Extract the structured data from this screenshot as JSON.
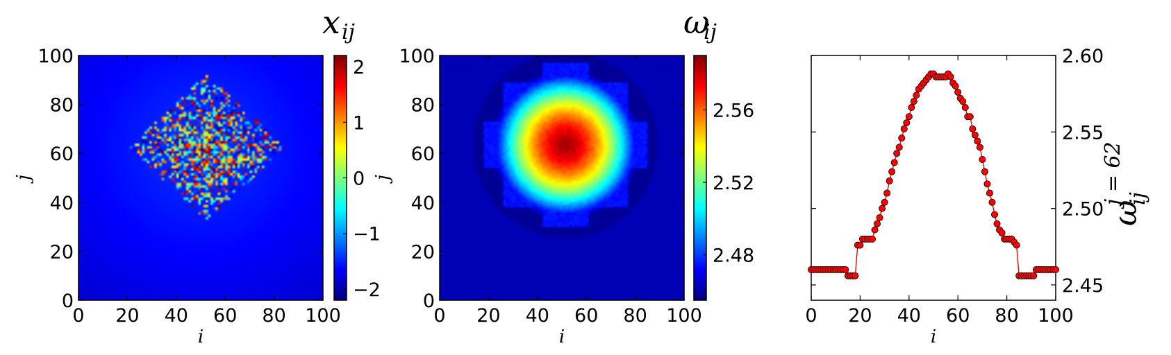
{
  "chart_data": [
    {
      "type": "heatmap",
      "title": "x",
      "title_sub": "ij",
      "xlabel": "i",
      "ylabel": "j",
      "xlim": [
        0,
        100
      ],
      "ylim": [
        0,
        100
      ],
      "xticks": [
        0,
        20,
        40,
        60,
        80,
        100
      ],
      "yticks": [
        0,
        20,
        40,
        60,
        80,
        100
      ],
      "colorbar": {
        "ticks": [
          2,
          1,
          0,
          -1,
          -2
        ],
        "tick_labels": [
          "2",
          "1",
          "0",
          "−1",
          "−2"
        ],
        "range": [
          -2.2,
          2.2
        ]
      },
      "colormap": "jet",
      "description_values": {
        "background_level_center": -1.4,
        "background_level_edge": -1.85,
        "noisy_region_center": [
          52,
          62
        ],
        "noisy_region_half_width": [
          32,
          30
        ],
        "noisy_value_range": [
          -2.2,
          2.2
        ]
      }
    },
    {
      "type": "heatmap",
      "title": "ω",
      "title_sub": "ij",
      "xlabel": "i",
      "ylabel": "j",
      "xlim": [
        0,
        100
      ],
      "ylim": [
        0,
        100
      ],
      "xticks": [
        0,
        20,
        40,
        60,
        80,
        100
      ],
      "yticks": [
        0,
        20,
        40,
        60,
        80,
        100
      ],
      "colorbar": {
        "ticks": [
          2.56,
          2.52,
          2.48
        ],
        "tick_labels": [
          "2.56",
          "2.52",
          "2.48"
        ],
        "range": [
          2.455,
          2.59
        ]
      },
      "colormap": "jet",
      "description_values": {
        "peak_center": [
          51,
          63
        ],
        "peak_value": 2.585,
        "outer_level": 2.462,
        "disk_level": 2.458,
        "disk_radius": 38,
        "plateau_level": 2.474
      }
    },
    {
      "type": "line",
      "title": "",
      "xlabel": "i",
      "ylabel": "ω",
      "ylabel_sub": "ij",
      "ylabel_sup": "j = 62",
      "xlim": [
        0,
        100
      ],
      "ylim": [
        2.44,
        2.6
      ],
      "xticks": [
        0,
        20,
        40,
        60,
        80,
        100
      ],
      "yticks": [
        2.45,
        2.5,
        2.55,
        2.6
      ],
      "ytick_labels": [
        "2.45",
        "2.50",
        "2.55",
        "2.60"
      ],
      "color": "#ff0000",
      "marker": "circle",
      "series": [
        {
          "x": [
            0,
            1,
            2,
            3,
            4,
            5,
            6,
            7,
            8,
            9,
            10,
            11,
            12,
            13,
            14,
            15,
            16,
            17,
            18,
            19,
            20,
            21,
            22,
            23,
            24,
            25,
            26,
            27,
            28,
            29,
            30,
            31,
            32,
            33,
            34,
            35,
            36,
            37,
            38,
            39,
            40,
            41,
            42,
            43,
            44,
            45,
            46,
            47,
            48,
            49,
            50,
            51,
            52,
            53,
            54,
            55,
            56,
            57,
            58,
            59,
            60,
            61,
            62,
            63,
            64,
            65,
            66,
            67,
            68,
            69,
            70,
            71,
            72,
            73,
            74,
            75,
            76,
            77,
            78,
            79,
            80,
            81,
            82,
            83,
            84,
            85,
            86,
            87,
            88,
            89,
            90,
            91,
            92,
            93,
            94,
            95,
            96,
            97,
            98,
            99,
            100
          ],
          "y": [
            2.46,
            2.46,
            2.46,
            2.46,
            2.46,
            2.46,
            2.46,
            2.46,
            2.46,
            2.46,
            2.46,
            2.46,
            2.46,
            2.46,
            2.46,
            2.456,
            2.456,
            2.456,
            2.456,
            2.476,
            2.476,
            2.48,
            2.48,
            2.48,
            2.48,
            2.48,
            2.486,
            2.49,
            2.494,
            2.5,
            2.504,
            2.51,
            2.518,
            2.524,
            2.53,
            2.536,
            2.54,
            2.546,
            2.552,
            2.556,
            2.56,
            2.566,
            2.57,
            2.574,
            2.578,
            2.58,
            2.582,
            2.584,
            2.586,
            2.588,
            2.588,
            2.586,
            2.586,
            2.586,
            2.586,
            2.586,
            2.588,
            2.586,
            2.582,
            2.58,
            2.576,
            2.572,
            2.57,
            2.566,
            2.56,
            2.56,
            2.552,
            2.548,
            2.544,
            2.54,
            2.532,
            2.524,
            2.516,
            2.51,
            2.504,
            2.496,
            2.49,
            2.486,
            2.484,
            2.48,
            2.48,
            2.48,
            2.48,
            2.478,
            2.476,
            2.456,
            2.456,
            2.456,
            2.456,
            2.456,
            2.456,
            2.456,
            2.46,
            2.46,
            2.46,
            2.46,
            2.46,
            2.46,
            2.46,
            2.46,
            2.46
          ]
        }
      ]
    }
  ]
}
